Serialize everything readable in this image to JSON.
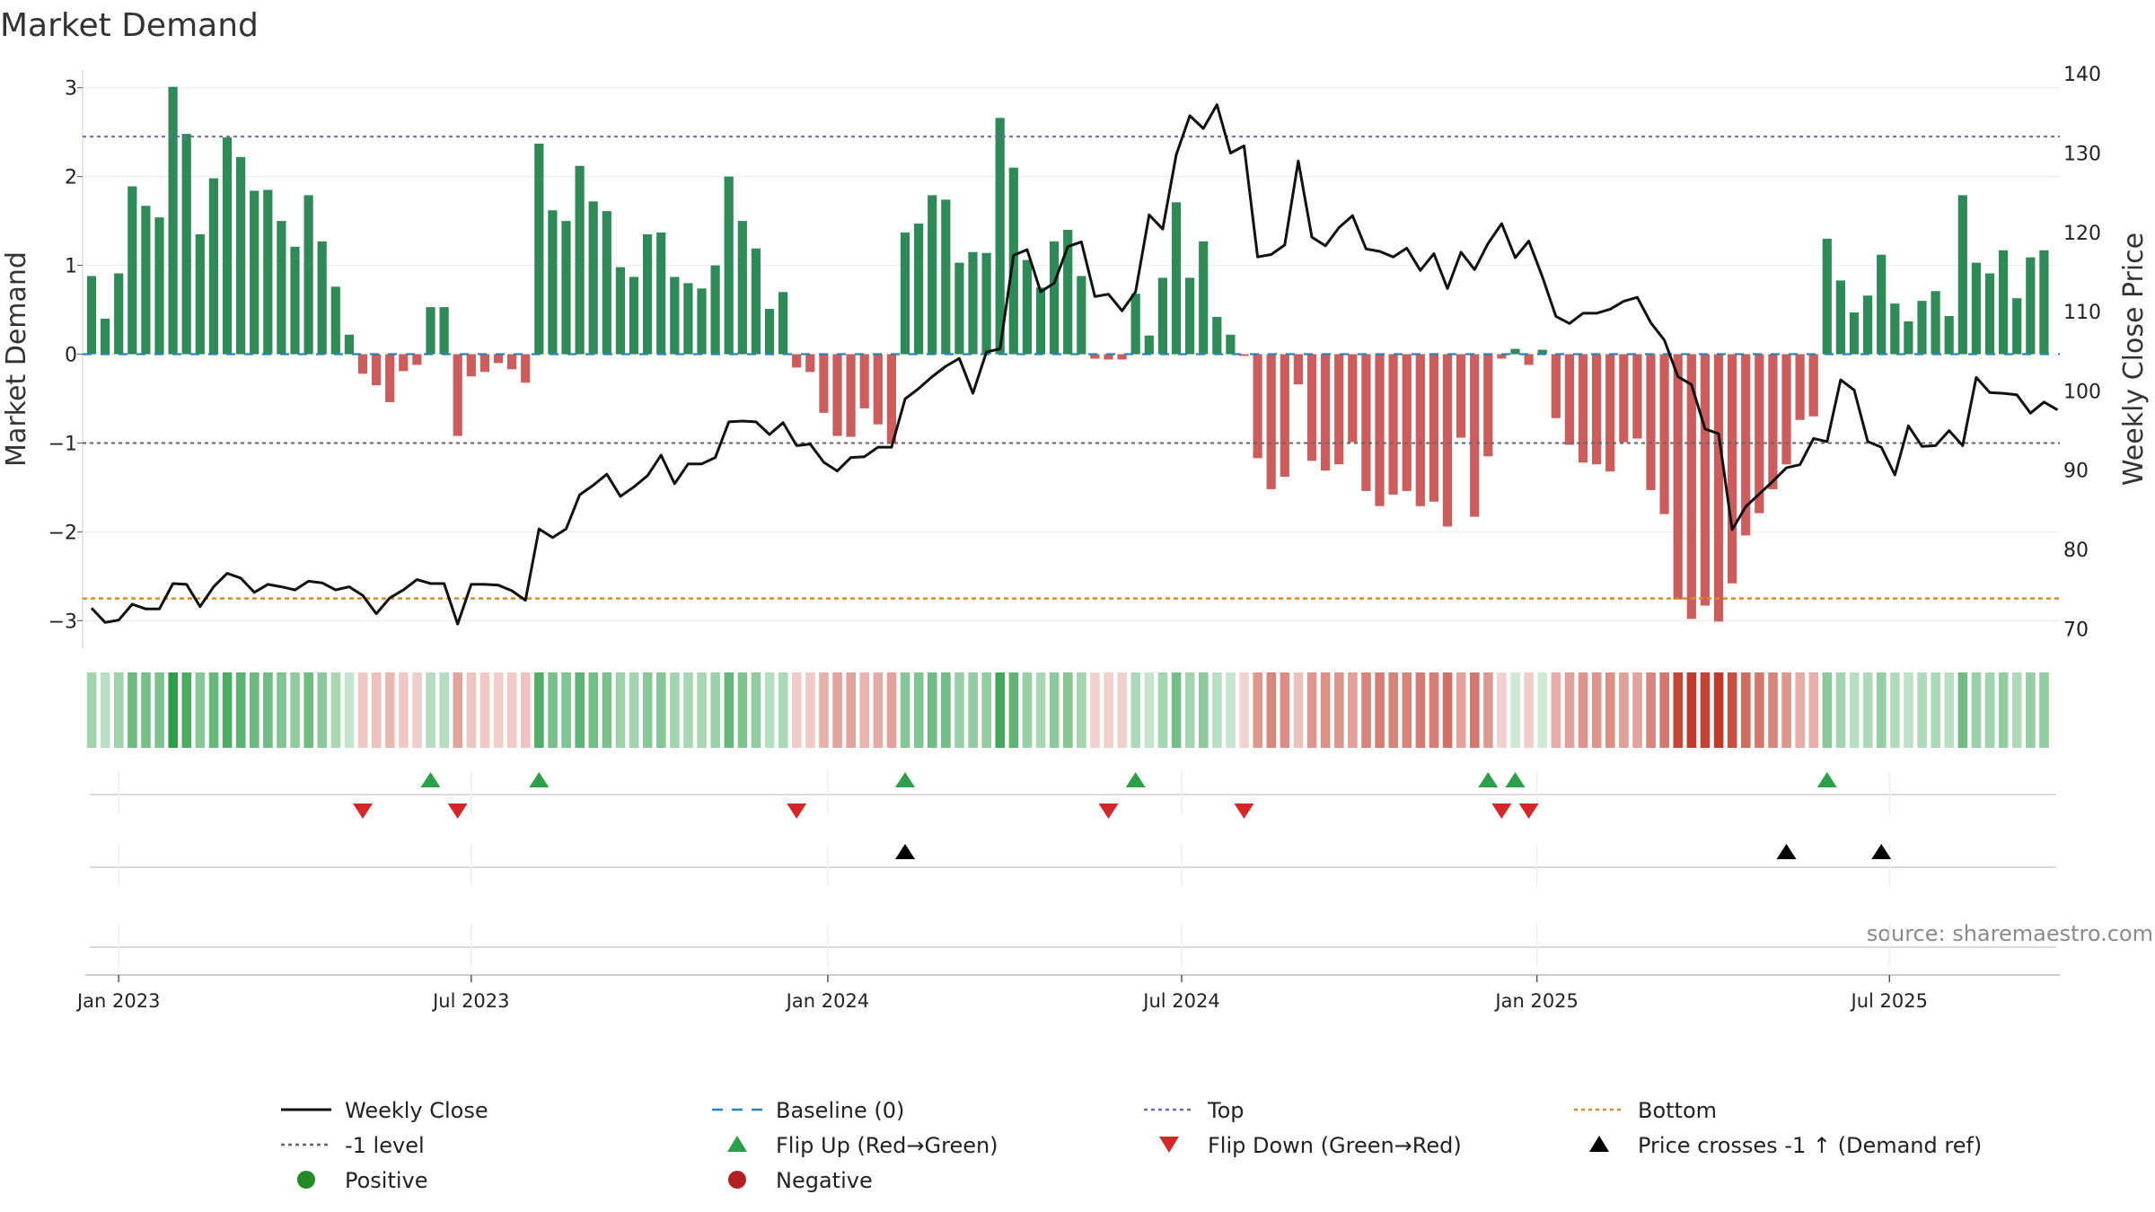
{
  "chart_data": {
    "type": "bar",
    "title": "Market Demand",
    "ylabel_left": "Market Demand",
    "ylabel_right": "Weekly Close Price",
    "ylim_left": [
      -3.35,
      3.3
    ],
    "ylim_right": [
      67.1,
      141.6
    ],
    "yticks_left": [
      3,
      2,
      1,
      0,
      -1,
      -2,
      -3
    ],
    "ytick_labels_left": [
      "3",
      "2",
      "1",
      "0",
      "−1",
      "−2",
      "−3"
    ],
    "yticks_right": [
      140,
      130,
      120,
      110,
      100,
      90,
      80,
      70
    ],
    "ytick_labels_right": [
      "140",
      "130",
      "120",
      "110",
      "100",
      "90",
      "80",
      "70"
    ],
    "reference_lines": {
      "top": 2.45,
      "bottom": -2.75,
      "minus_one": -1,
      "baseline": 0
    },
    "x_tick_labels": [
      "Jan 2023",
      "Jul 2023",
      "Jan 2024",
      "Jul 2024",
      "Jan 2025",
      "Jul 2025"
    ],
    "x_tick_weeks": [
      2,
      28,
      54.3,
      80.4,
      106.6,
      132.6
    ],
    "demand": [
      0.88,
      0.4,
      0.91,
      1.89,
      1.67,
      1.54,
      3.01,
      2.48,
      1.35,
      1.98,
      2.44,
      2.22,
      1.84,
      1.85,
      1.5,
      1.21,
      1.79,
      1.27,
      0.76,
      0.22,
      -0.22,
      -0.35,
      -0.54,
      -0.19,
      -0.12,
      0.53,
      0.53,
      -0.92,
      -0.25,
      -0.2,
      -0.1,
      -0.17,
      -0.32,
      2.37,
      1.62,
      1.5,
      2.12,
      1.72,
      1.61,
      0.98,
      0.87,
      1.35,
      1.37,
      0.87,
      0.8,
      0.74,
      1.0,
      2.0,
      1.5,
      1.19,
      0.51,
      0.7,
      -0.15,
      -0.2,
      -0.66,
      -0.92,
      -0.93,
      -0.61,
      -0.79,
      -1.0,
      1.37,
      1.47,
      1.79,
      1.74,
      1.03,
      1.15,
      1.14,
      2.66,
      2.1,
      1.06,
      0.75,
      1.27,
      1.4,
      0.88,
      -0.05,
      -0.06,
      -0.06,
      0.68,
      0.21,
      0.86,
      1.71,
      0.86,
      1.27,
      0.42,
      0.22,
      -0.02,
      -1.17,
      -1.52,
      -1.38,
      -0.34,
      -1.2,
      -1.31,
      -1.24,
      -0.99,
      -1.54,
      -1.71,
      -1.58,
      -1.54,
      -1.71,
      -1.66,
      -1.94,
      -0.94,
      -1.83,
      -1.15,
      -0.05,
      0.06,
      -0.12,
      0.05,
      -0.72,
      -1.02,
      -1.22,
      -1.24,
      -1.32,
      -0.99,
      -0.95,
      -1.53,
      -1.8,
      -2.76,
      -2.98,
      -2.83,
      -3.01,
      -2.58,
      -2.04,
      -1.79,
      -1.52,
      -1.24,
      -0.74,
      -0.7,
      1.3,
      0.83,
      0.47,
      0.66,
      1.12,
      0.57,
      0.37,
      0.6,
      0.71,
      0.43,
      1.79,
      1.03,
      0.91,
      1.17,
      0.63,
      1.09,
      1.17
    ],
    "weekly_close": [
      72.6,
      70.8,
      71.1,
      73.1,
      72.5,
      72.5,
      75.7,
      75.6,
      72.8,
      75.3,
      77.0,
      76.4,
      74.6,
      75.6,
      75.3,
      74.9,
      76.0,
      75.8,
      74.9,
      75.3,
      74.2,
      71.9,
      73.9,
      74.9,
      76.2,
      75.7,
      75.7,
      70.6,
      75.6,
      75.6,
      75.5,
      74.8,
      73.6,
      82.6,
      81.5,
      82.6,
      86.9,
      88.1,
      89.5,
      86.7,
      87.9,
      89.3,
      91.9,
      88.3,
      90.8,
      90.8,
      91.6,
      96.1,
      96.2,
      96.1,
      94.5,
      96.0,
      93.1,
      93.3,
      91.0,
      89.9,
      91.6,
      91.7,
      92.9,
      92.9,
      99.0,
      100.3,
      101.8,
      103.1,
      104.1,
      99.7,
      104.9,
      105.3,
      117.1,
      117.8,
      112.5,
      113.6,
      118.2,
      118.8,
      111.9,
      112.2,
      110.1,
      112.5,
      122.2,
      120.4,
      129.8,
      134.7,
      133.1,
      136.1,
      130.0,
      130.9,
      116.9,
      117.2,
      118.4,
      129.0,
      119.4,
      118.3,
      120.6,
      122.1,
      117.9,
      117.6,
      116.9,
      118.0,
      115.2,
      117.3,
      112.9,
      117.5,
      115.3,
      118.6,
      121.1,
      116.8,
      118.9,
      114.4,
      109.4,
      108.5,
      109.8,
      109.8,
      110.3,
      111.3,
      111.8,
      108.6,
      106.4,
      101.8,
      100.8,
      95.2,
      94.6,
      82.5,
      85.4,
      87.0,
      88.6,
      90.3,
      90.7,
      94.0,
      93.6,
      101.4,
      100.1,
      93.6,
      92.9,
      89.4,
      95.6,
      93.0,
      93.1,
      95.0,
      93.1,
      101.7,
      99.8,
      99.7,
      99.5,
      97.2,
      98.6,
      97.6
    ],
    "flip_up_weeks": [
      25,
      33,
      60,
      77,
      103,
      105,
      128
    ],
    "flip_down_weeks": [
      20,
      27,
      52,
      75,
      85,
      104,
      106
    ],
    "price_cross_weeks": [
      60,
      125,
      132
    ],
    "source": "source: sharemaestro.com",
    "legend": [
      {
        "label": "Weekly Close",
        "marker": "line-solid",
        "color": "#111111"
      },
      {
        "label": "Baseline (0)",
        "marker": "line-dashed",
        "color": "#2b83ba"
      },
      {
        "label": "Top",
        "marker": "line-dotted",
        "color": "#6a6ab0"
      },
      {
        "label": "Bottom",
        "marker": "line-dotted",
        "color": "#e08a1e"
      },
      {
        "label": "-1 level",
        "marker": "line-dotted",
        "color": "#666666"
      },
      {
        "label": "Flip Up (Red→Green)",
        "marker": "triangle-up",
        "color": "#2ca048"
      },
      {
        "label": "Flip Down (Green→Red)",
        "marker": "triangle-down",
        "color": "#d62728"
      },
      {
        "label": "Price crosses -1 ↑ (Demand ref)",
        "marker": "triangle-up",
        "color": "#000000"
      },
      {
        "label": "Positive",
        "marker": "circle",
        "color": "#228b22"
      },
      {
        "label": "Negative",
        "marker": "circle",
        "color": "#b22222"
      }
    ],
    "colors": {
      "positive_bar": "#2e8b57",
      "negative_bar": "#cd5c5c",
      "heat_positive": "#2e9e4a",
      "heat_negative": "#c0392b"
    }
  }
}
